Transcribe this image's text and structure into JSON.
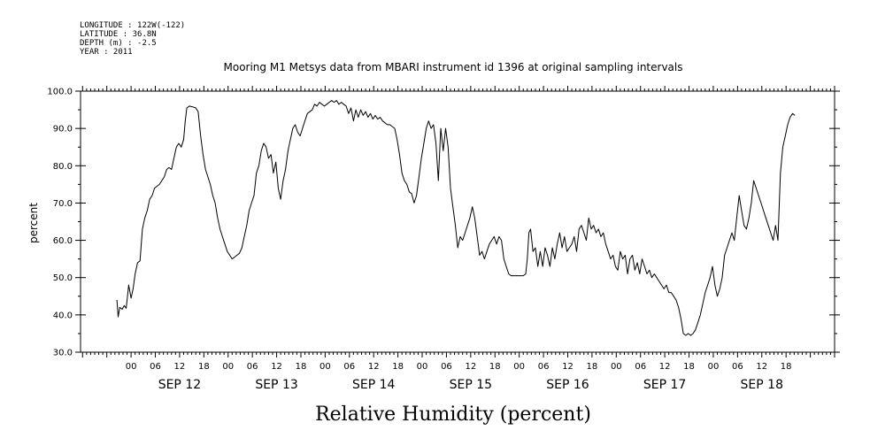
{
  "header": {
    "longitude": "LONGITUDE : 122W(-122)",
    "latitude": "LATITUDE : 36.8N",
    "depth": "DEPTH (m) : -2.5",
    "year": "YEAR : 2011"
  },
  "chart_data": {
    "type": "line",
    "title": "Mooring M1 Metsys data from MBARI instrument id 1396 at original sampling intervals",
    "xlabel": "Relative Humidity (percent)",
    "ylabel": "percent",
    "ylim": [
      30,
      100
    ],
    "yticks": [
      30,
      40,
      50,
      60,
      70,
      80,
      90,
      100
    ],
    "x_unit": "hours since SEP 12 00:00 (2011)",
    "xlim": [
      -12.5,
      174
    ],
    "hour_ticks": [
      {
        "x": 0,
        "label": "00"
      },
      {
        "x": 6,
        "label": "06"
      },
      {
        "x": 12,
        "label": "12"
      },
      {
        "x": 18,
        "label": "18"
      },
      {
        "x": 24,
        "label": "00"
      },
      {
        "x": 30,
        "label": "06"
      },
      {
        "x": 36,
        "label": "12"
      },
      {
        "x": 42,
        "label": "18"
      },
      {
        "x": 48,
        "label": "00"
      },
      {
        "x": 54,
        "label": "06"
      },
      {
        "x": 60,
        "label": "12"
      },
      {
        "x": 66,
        "label": "18"
      },
      {
        "x": 72,
        "label": "00"
      },
      {
        "x": 78,
        "label": "06"
      },
      {
        "x": 84,
        "label": "12"
      },
      {
        "x": 90,
        "label": "18"
      },
      {
        "x": 96,
        "label": "00"
      },
      {
        "x": 102,
        "label": "06"
      },
      {
        "x": 108,
        "label": "12"
      },
      {
        "x": 114,
        "label": "18"
      },
      {
        "x": 120,
        "label": "00"
      },
      {
        "x": 126,
        "label": "06"
      },
      {
        "x": 132,
        "label": "12"
      },
      {
        "x": 138,
        "label": "18"
      },
      {
        "x": 144,
        "label": "00"
      },
      {
        "x": 150,
        "label": "06"
      },
      {
        "x": 156,
        "label": "12"
      },
      {
        "x": 162,
        "label": "18"
      }
    ],
    "day_labels": [
      {
        "x": 12,
        "label": "SEP 12"
      },
      {
        "x": 36,
        "label": "SEP 13"
      },
      {
        "x": 60,
        "label": "SEP 14"
      },
      {
        "x": 84,
        "label": "SEP 15"
      },
      {
        "x": 108,
        "label": "SEP 16"
      },
      {
        "x": 132,
        "label": "SEP 17"
      },
      {
        "x": 156,
        "label": "SEP 18"
      }
    ],
    "series": [
      {
        "color": "#000000",
        "points": [
          [
            -3.5,
            44
          ],
          [
            -3.2,
            39.5
          ],
          [
            -2.8,
            42
          ],
          [
            -2.2,
            41.5
          ],
          [
            -1.7,
            42.5
          ],
          [
            -1.2,
            41.8
          ],
          [
            -0.6,
            48
          ],
          [
            0,
            44.5
          ],
          [
            0.5,
            47
          ],
          [
            1,
            51
          ],
          [
            1.6,
            54
          ],
          [
            2.2,
            54.5
          ],
          [
            2.8,
            63
          ],
          [
            3.4,
            66
          ],
          [
            4,
            68
          ],
          [
            4.6,
            71
          ],
          [
            5.2,
            72
          ],
          [
            5.8,
            74
          ],
          [
            6.4,
            74.5
          ],
          [
            7,
            75
          ],
          [
            7.6,
            76
          ],
          [
            8.2,
            77
          ],
          [
            8.8,
            79
          ],
          [
            9.4,
            79.5
          ],
          [
            10,
            79
          ],
          [
            10.6,
            82
          ],
          [
            11.2,
            85
          ],
          [
            11.8,
            86
          ],
          [
            12.4,
            85
          ],
          [
            13,
            87
          ],
          [
            13.4,
            92
          ],
          [
            13.8,
            95.5
          ],
          [
            14.4,
            96
          ],
          [
            15.2,
            95.8
          ],
          [
            16,
            95.5
          ],
          [
            16.6,
            94.5
          ],
          [
            17.2,
            88
          ],
          [
            17.8,
            83
          ],
          [
            18.4,
            79
          ],
          [
            19,
            77
          ],
          [
            19.6,
            75
          ],
          [
            20.2,
            72
          ],
          [
            20.8,
            70
          ],
          [
            21.4,
            66
          ],
          [
            22,
            63
          ],
          [
            22.6,
            61
          ],
          [
            23.2,
            59
          ],
          [
            23.8,
            57
          ],
          [
            24.4,
            56
          ],
          [
            25,
            55
          ],
          [
            25.6,
            55.5
          ],
          [
            26.2,
            56
          ],
          [
            26.8,
            56.5
          ],
          [
            27.4,
            58
          ],
          [
            28,
            61
          ],
          [
            28.6,
            64
          ],
          [
            29.2,
            68
          ],
          [
            29.8,
            70
          ],
          [
            30.4,
            72
          ],
          [
            31,
            78
          ],
          [
            31.6,
            80
          ],
          [
            32.2,
            84
          ],
          [
            32.8,
            86
          ],
          [
            33.4,
            85
          ],
          [
            34,
            82
          ],
          [
            34.6,
            83
          ],
          [
            35.2,
            78
          ],
          [
            35.8,
            81
          ],
          [
            36.4,
            74
          ],
          [
            37,
            71
          ],
          [
            37.6,
            76
          ],
          [
            38.2,
            79
          ],
          [
            38.8,
            84
          ],
          [
            39.4,
            87
          ],
          [
            40,
            90
          ],
          [
            40.6,
            91
          ],
          [
            41.2,
            89
          ],
          [
            41.8,
            88
          ],
          [
            42.4,
            90
          ],
          [
            43,
            92
          ],
          [
            43.6,
            94
          ],
          [
            44.2,
            94.5
          ],
          [
            44.8,
            95
          ],
          [
            45.4,
            96.5
          ],
          [
            46,
            96
          ],
          [
            46.6,
            97
          ],
          [
            47.2,
            96.5
          ],
          [
            47.8,
            96
          ],
          [
            48.4,
            96.5
          ],
          [
            49,
            97
          ],
          [
            49.6,
            97.5
          ],
          [
            50.2,
            97
          ],
          [
            50.8,
            97.5
          ],
          [
            51.4,
            96.5
          ],
          [
            52,
            97
          ],
          [
            52.6,
            96.5
          ],
          [
            53.2,
            96
          ],
          [
            53.8,
            94
          ],
          [
            54.4,
            95.5
          ],
          [
            55,
            92
          ],
          [
            55.6,
            95
          ],
          [
            56.2,
            93
          ],
          [
            56.8,
            95
          ],
          [
            57.4,
            93.5
          ],
          [
            58,
            94.5
          ],
          [
            58.6,
            93
          ],
          [
            59.2,
            94
          ],
          [
            59.8,
            92.5
          ],
          [
            60.4,
            93.5
          ],
          [
            61,
            92.5
          ],
          [
            61.6,
            93
          ],
          [
            62.2,
            92
          ],
          [
            62.8,
            91.5
          ],
          [
            63.4,
            91
          ],
          [
            64,
            91
          ],
          [
            64.6,
            90.5
          ],
          [
            65.2,
            90
          ],
          [
            65.8,
            87
          ],
          [
            66.4,
            83
          ],
          [
            67,
            78
          ],
          [
            67.6,
            76
          ],
          [
            68.2,
            75
          ],
          [
            68.8,
            73
          ],
          [
            69.4,
            72.5
          ],
          [
            70,
            70
          ],
          [
            70.6,
            72
          ],
          [
            71.2,
            77
          ],
          [
            71.8,
            82
          ],
          [
            72.4,
            86
          ],
          [
            73,
            90
          ],
          [
            73.6,
            92
          ],
          [
            74.2,
            90
          ],
          [
            74.8,
            91
          ],
          [
            75.4,
            86
          ],
          [
            76,
            76
          ],
          [
            76.6,
            90
          ],
          [
            77.2,
            84
          ],
          [
            77.8,
            90
          ],
          [
            78.4,
            85
          ],
          [
            79,
            74
          ],
          [
            79.6,
            69
          ],
          [
            80.2,
            64
          ],
          [
            80.8,
            58
          ],
          [
            81.4,
            61
          ],
          [
            82,
            60
          ],
          [
            82.6,
            62
          ],
          [
            83.2,
            64
          ],
          [
            83.8,
            66
          ],
          [
            84.4,
            69
          ],
          [
            85,
            66
          ],
          [
            85.6,
            61
          ],
          [
            86.2,
            56
          ],
          [
            86.8,
            57
          ],
          [
            87.4,
            55
          ],
          [
            88,
            57
          ],
          [
            88.6,
            59
          ],
          [
            89.2,
            60
          ],
          [
            89.8,
            61
          ],
          [
            90.4,
            59
          ],
          [
            91,
            61
          ],
          [
            91.6,
            60
          ],
          [
            92.2,
            55
          ],
          [
            92.8,
            53
          ],
          [
            93.4,
            51
          ],
          [
            94,
            50.5
          ],
          [
            95.5,
            50.5
          ],
          [
            97,
            50.5
          ],
          [
            97.6,
            51
          ],
          [
            98,
            55
          ],
          [
            98.4,
            62
          ],
          [
            98.8,
            63
          ],
          [
            99.4,
            57
          ],
          [
            100,
            58
          ],
          [
            100.6,
            53
          ],
          [
            101.2,
            57
          ],
          [
            101.8,
            53
          ],
          [
            102.4,
            58
          ],
          [
            103,
            56
          ],
          [
            103.6,
            53
          ],
          [
            104.2,
            58
          ],
          [
            104.8,
            55
          ],
          [
            105.4,
            59
          ],
          [
            106,
            62
          ],
          [
            106.6,
            58
          ],
          [
            107.2,
            61
          ],
          [
            107.8,
            57
          ],
          [
            108.4,
            58
          ],
          [
            109,
            59
          ],
          [
            109.6,
            61
          ],
          [
            110.2,
            57
          ],
          [
            110.8,
            63
          ],
          [
            111.4,
            64
          ],
          [
            112,
            62
          ],
          [
            112.6,
            60
          ],
          [
            113.2,
            66
          ],
          [
            113.8,
            63
          ],
          [
            114.4,
            64
          ],
          [
            115,
            62
          ],
          [
            115.6,
            63
          ],
          [
            116.2,
            61
          ],
          [
            116.8,
            62
          ],
          [
            117.4,
            59
          ],
          [
            118,
            57
          ],
          [
            118.6,
            55
          ],
          [
            119.2,
            56
          ],
          [
            119.8,
            53
          ],
          [
            120.4,
            52
          ],
          [
            121,
            57
          ],
          [
            121.6,
            55
          ],
          [
            122.2,
            56
          ],
          [
            122.8,
            51
          ],
          [
            123.4,
            55
          ],
          [
            124,
            56
          ],
          [
            124.6,
            52
          ],
          [
            125.2,
            54
          ],
          [
            125.8,
            51
          ],
          [
            126.4,
            55
          ],
          [
            127,
            53
          ],
          [
            127.6,
            51
          ],
          [
            128.2,
            52
          ],
          [
            128.8,
            50
          ],
          [
            129.4,
            51
          ],
          [
            130,
            50
          ],
          [
            130.6,
            49
          ],
          [
            131.2,
            48
          ],
          [
            131.8,
            47
          ],
          [
            132.4,
            48
          ],
          [
            133,
            46
          ],
          [
            133.6,
            46
          ],
          [
            134.2,
            45
          ],
          [
            134.8,
            44
          ],
          [
            135.4,
            42
          ],
          [
            136,
            39
          ],
          [
            136.6,
            35
          ],
          [
            137.2,
            34.5
          ],
          [
            137.8,
            35
          ],
          [
            138.4,
            34.5
          ],
          [
            139,
            35
          ],
          [
            139.6,
            36
          ],
          [
            140.2,
            38
          ],
          [
            140.8,
            40
          ],
          [
            141.4,
            43
          ],
          [
            142,
            46
          ],
          [
            142.6,
            48
          ],
          [
            143.2,
            50
          ],
          [
            143.8,
            53
          ],
          [
            144.4,
            48
          ],
          [
            145,
            45
          ],
          [
            145.6,
            47
          ],
          [
            146.2,
            50
          ],
          [
            146.8,
            56
          ],
          [
            147.4,
            58
          ],
          [
            148,
            60
          ],
          [
            148.6,
            62
          ],
          [
            149.2,
            60
          ],
          [
            149.8,
            66
          ],
          [
            150.4,
            72
          ],
          [
            151,
            68
          ],
          [
            151.6,
            64
          ],
          [
            152.2,
            63
          ],
          [
            152.8,
            66
          ],
          [
            153.4,
            70
          ],
          [
            154,
            76
          ],
          [
            154.6,
            74
          ],
          [
            155.2,
            72
          ],
          [
            155.8,
            70
          ],
          [
            156.4,
            68
          ],
          [
            157,
            66
          ],
          [
            157.6,
            64
          ],
          [
            158.2,
            62
          ],
          [
            158.8,
            60
          ],
          [
            159.4,
            64
          ],
          [
            160,
            60
          ],
          [
            160.6,
            78
          ],
          [
            161.2,
            85
          ],
          [
            161.8,
            88
          ],
          [
            162.4,
            91
          ],
          [
            163,
            93
          ],
          [
            163.6,
            94
          ],
          [
            164.2,
            93.5
          ]
        ]
      }
    ]
  }
}
